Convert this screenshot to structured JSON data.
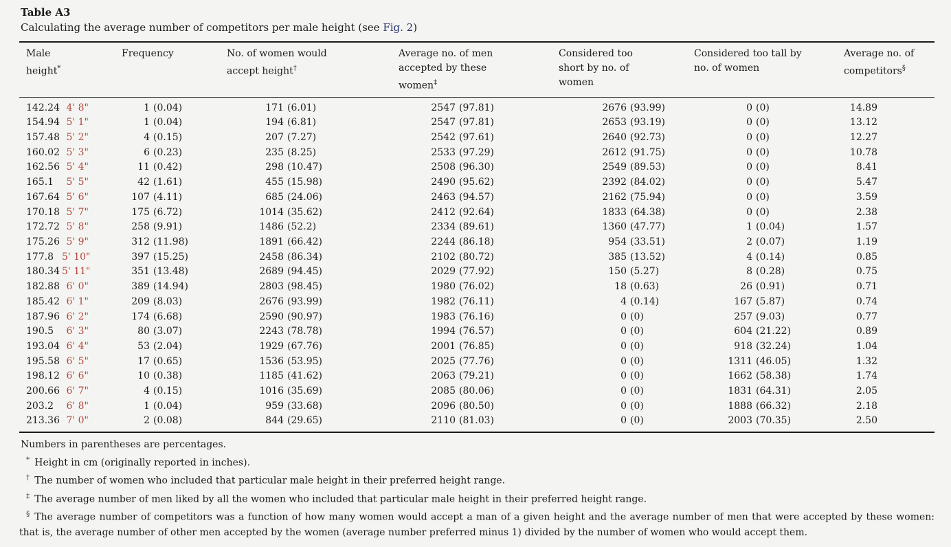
{
  "theme": {
    "background": "#f4f5f2",
    "accent_red": "#b5463d",
    "link_navy": "#25336e"
  },
  "header": {
    "title": "Table A3",
    "caption_before": "Calculating the average number of competitors per male height (see ",
    "caption_link": "Fig. 2",
    "caption_after": ")"
  },
  "table": {
    "columns": [
      {
        "label": "Male height",
        "marker": "*"
      },
      {
        "label": "Frequency",
        "marker": ""
      },
      {
        "label": "No. of women would accept height",
        "marker": "†"
      },
      {
        "label": "Average no. of men accepted by these women",
        "marker": "‡"
      },
      {
        "label": "Considered too short by no. of women",
        "marker": ""
      },
      {
        "label": "Considered too tall by no. of women",
        "marker": ""
      },
      {
        "label": "Average no. of competitors",
        "marker": "§"
      }
    ],
    "rows": [
      {
        "cm": "142.24",
        "ft": "4' 8\"",
        "freq": [
          "1",
          "(0.04)"
        ],
        "accept": [
          "171",
          "(6.01)"
        ],
        "avgmen": [
          "2547",
          "(97.81)"
        ],
        "short": [
          "2676",
          "(93.99)"
        ],
        "tall": [
          "0",
          "(0)"
        ],
        "comp": "14.89"
      },
      {
        "cm": "154.94",
        "ft": "5' 1\"",
        "freq": [
          "1",
          "(0.04)"
        ],
        "accept": [
          "194",
          "(6.81)"
        ],
        "avgmen": [
          "2547",
          "(97.81)"
        ],
        "short": [
          "2653",
          "(93.19)"
        ],
        "tall": [
          "0",
          "(0)"
        ],
        "comp": "13.12"
      },
      {
        "cm": "157.48",
        "ft": "5' 2\"",
        "freq": [
          "4",
          "(0.15)"
        ],
        "accept": [
          "207",
          "(7.27)"
        ],
        "avgmen": [
          "2542",
          "(97.61)"
        ],
        "short": [
          "2640",
          "(92.73)"
        ],
        "tall": [
          "0",
          "(0)"
        ],
        "comp": "12.27"
      },
      {
        "cm": "160.02",
        "ft": "5' 3\"",
        "freq": [
          "6",
          "(0.23)"
        ],
        "accept": [
          "235",
          "(8.25)"
        ],
        "avgmen": [
          "2533",
          "(97.29)"
        ],
        "short": [
          "2612",
          "(91.75)"
        ],
        "tall": [
          "0",
          "(0)"
        ],
        "comp": "10.78"
      },
      {
        "cm": "162.56",
        "ft": "5' 4\"",
        "freq": [
          "11",
          "(0.42)"
        ],
        "accept": [
          "298",
          "(10.47)"
        ],
        "avgmen": [
          "2508",
          "(96.30)"
        ],
        "short": [
          "2549",
          "(89.53)"
        ],
        "tall": [
          "0",
          "(0)"
        ],
        "comp": "8.41"
      },
      {
        "cm": "165.1",
        "ft": "5' 5\"",
        "freq": [
          "42",
          "(1.61)"
        ],
        "accept": [
          "455",
          "(15.98)"
        ],
        "avgmen": [
          "2490",
          "(95.62)"
        ],
        "short": [
          "2392",
          "(84.02)"
        ],
        "tall": [
          "0",
          "(0)"
        ],
        "comp": "5.47"
      },
      {
        "cm": "167.64",
        "ft": "5' 6\"",
        "freq": [
          "107",
          "(4.11)"
        ],
        "accept": [
          "685",
          "(24.06)"
        ],
        "avgmen": [
          "2463",
          "(94.57)"
        ],
        "short": [
          "2162",
          "(75.94)"
        ],
        "tall": [
          "0",
          "(0)"
        ],
        "comp": "3.59"
      },
      {
        "cm": "170.18",
        "ft": "5' 7\"",
        "freq": [
          "175",
          "(6.72)"
        ],
        "accept": [
          "1014",
          "(35.62)"
        ],
        "avgmen": [
          "2412",
          "(92.64)"
        ],
        "short": [
          "1833",
          "(64.38)"
        ],
        "tall": [
          "0",
          "(0)"
        ],
        "comp": "2.38"
      },
      {
        "cm": "172.72",
        "ft": "5' 8\"",
        "freq": [
          "258",
          "(9.91)"
        ],
        "accept": [
          "1486",
          "(52.2)"
        ],
        "avgmen": [
          "2334",
          "(89.61)"
        ],
        "short": [
          "1360",
          "(47.77)"
        ],
        "tall": [
          "1",
          "(0.04)"
        ],
        "comp": "1.57"
      },
      {
        "cm": "175.26",
        "ft": "5' 9\"",
        "freq": [
          "312",
          "(11.98)"
        ],
        "accept": [
          "1891",
          "(66.42)"
        ],
        "avgmen": [
          "2244",
          "(86.18)"
        ],
        "short": [
          "954",
          "(33.51)"
        ],
        "tall": [
          "2",
          "(0.07)"
        ],
        "comp": "1.19"
      },
      {
        "cm": "177.8",
        "ft": "5' 10\"",
        "freq": [
          "397",
          "(15.25)"
        ],
        "accept": [
          "2458",
          "(86.34)"
        ],
        "avgmen": [
          "2102",
          "(80.72)"
        ],
        "short": [
          "385",
          "(13.52)"
        ],
        "tall": [
          "4",
          "(0.14)"
        ],
        "comp": "0.85"
      },
      {
        "cm": "180.34",
        "ft": "5' 11\"",
        "freq": [
          "351",
          "(13.48)"
        ],
        "accept": [
          "2689",
          "(94.45)"
        ],
        "avgmen": [
          "2029",
          "(77.92)"
        ],
        "short": [
          "150",
          "(5.27)"
        ],
        "tall": [
          "8",
          "(0.28)"
        ],
        "comp": "0.75"
      },
      {
        "cm": "182.88",
        "ft": "6' 0\"",
        "freq": [
          "389",
          "(14.94)"
        ],
        "accept": [
          "2803",
          "(98.45)"
        ],
        "avgmen": [
          "1980",
          "(76.02)"
        ],
        "short": [
          "18",
          "(0.63)"
        ],
        "tall": [
          "26",
          "(0.91)"
        ],
        "comp": "0.71"
      },
      {
        "cm": "185.42",
        "ft": "6' 1\"",
        "freq": [
          "209",
          "(8.03)"
        ],
        "accept": [
          "2676",
          "(93.99)"
        ],
        "avgmen": [
          "1982",
          "(76.11)"
        ],
        "short": [
          "4",
          "(0.14)"
        ],
        "tall": [
          "167",
          "(5.87)"
        ],
        "comp": "0.74"
      },
      {
        "cm": "187.96",
        "ft": "6' 2\"",
        "freq": [
          "174",
          "(6.68)"
        ],
        "accept": [
          "2590",
          "(90.97)"
        ],
        "avgmen": [
          "1983",
          "(76.16)"
        ],
        "short": [
          "0",
          "(0)"
        ],
        "tall": [
          "257",
          "(9.03)"
        ],
        "comp": "0.77"
      },
      {
        "cm": "190.5",
        "ft": "6' 3\"",
        "freq": [
          "80",
          "(3.07)"
        ],
        "accept": [
          "2243",
          "(78.78)"
        ],
        "avgmen": [
          "1994",
          "(76.57)"
        ],
        "short": [
          "0",
          "(0)"
        ],
        "tall": [
          "604",
          "(21.22)"
        ],
        "comp": "0.89"
      },
      {
        "cm": "193.04",
        "ft": "6' 4\"",
        "freq": [
          "53",
          "(2.04)"
        ],
        "accept": [
          "1929",
          "(67.76)"
        ],
        "avgmen": [
          "2001",
          "(76.85)"
        ],
        "short": [
          "0",
          "(0)"
        ],
        "tall": [
          "918",
          "(32.24)"
        ],
        "comp": "1.04"
      },
      {
        "cm": "195.58",
        "ft": "6' 5\"",
        "freq": [
          "17",
          "(0.65)"
        ],
        "accept": [
          "1536",
          "(53.95)"
        ],
        "avgmen": [
          "2025",
          "(77.76)"
        ],
        "short": [
          "0",
          "(0)"
        ],
        "tall": [
          "1311",
          "(46.05)"
        ],
        "comp": "1.32"
      },
      {
        "cm": "198.12",
        "ft": "6' 6\"",
        "freq": [
          "10",
          "(0.38)"
        ],
        "accept": [
          "1185",
          "(41.62)"
        ],
        "avgmen": [
          "2063",
          "(79.21)"
        ],
        "short": [
          "0",
          "(0)"
        ],
        "tall": [
          "1662",
          "(58.38)"
        ],
        "comp": "1.74"
      },
      {
        "cm": "200.66",
        "ft": "6' 7\"",
        "freq": [
          "4",
          "(0.15)"
        ],
        "accept": [
          "1016",
          "(35.69)"
        ],
        "avgmen": [
          "2085",
          "(80.06)"
        ],
        "short": [
          "0",
          "(0)"
        ],
        "tall": [
          "1831",
          "(64.31)"
        ],
        "comp": "2.05"
      },
      {
        "cm": "203.2",
        "ft": "6' 8\"",
        "freq": [
          "1",
          "(0.04)"
        ],
        "accept": [
          "959",
          "(33.68)"
        ],
        "avgmen": [
          "2096",
          "(80.50)"
        ],
        "short": [
          "0",
          "(0)"
        ],
        "tall": [
          "1888",
          "(66.32)"
        ],
        "comp": "2.18"
      },
      {
        "cm": "213.36",
        "ft": "7' 0\"",
        "freq": [
          "2",
          "(0.08)"
        ],
        "accept": [
          "844",
          "(29.65)"
        ],
        "avgmen": [
          "2110",
          "(81.03)"
        ],
        "short": [
          "0",
          "(0)"
        ],
        "tall": [
          "2003",
          "(70.35)"
        ],
        "comp": "2.50"
      }
    ]
  },
  "footnotes": {
    "intro": "Numbers in parentheses are percentages.",
    "items": [
      {
        "marker": "*",
        "text": "Height in cm (originally reported in inches)."
      },
      {
        "marker": "†",
        "text": "The number of women who included that particular male height in their preferred height range."
      },
      {
        "marker": "‡",
        "text": "The average number of men liked by all the women who included that particular male height in their preferred height range."
      },
      {
        "marker": "§",
        "text": "The average number of competitors was a function of how many women would accept a man of a given height and the average number of men that were accepted by these women: that is, the average number of other men accepted by the women (average number preferred minus 1) divided by the number of women who would accept them."
      }
    ]
  }
}
